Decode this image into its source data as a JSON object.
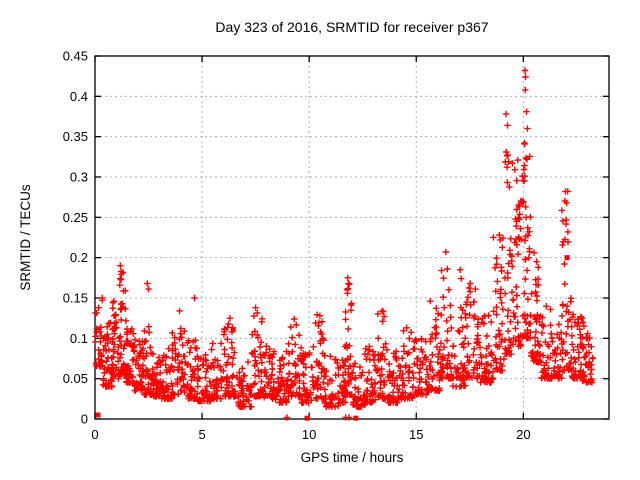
{
  "page": {
    "background_color": "#ffffff"
  },
  "chart_data": {
    "type": "scatter",
    "title": "Day 323 of 2016, SRMTID for receiver p367",
    "xlabel": "GPS time / hours",
    "ylabel": "SRMTID / TECUs",
    "xlim": [
      0,
      24
    ],
    "ylim": [
      0,
      0.45
    ],
    "xtick_values": [
      0,
      5,
      10,
      15,
      20
    ],
    "xtick_labels": [
      "0",
      "5",
      "10",
      "15",
      "20"
    ],
    "ytick_values": [
      0,
      0.05,
      0.1,
      0.15,
      0.2,
      0.25,
      0.3,
      0.35,
      0.4,
      0.45
    ],
    "ytick_labels": [
      "0",
      "0.05",
      "0.1",
      "0.15",
      "0.2",
      "0.25",
      "0.3",
      "0.35",
      "0.4",
      "0.45"
    ],
    "grid": true,
    "grid_style": "dotted",
    "grid_color": "#b0b0b0",
    "axis_color": "#000000",
    "marker": "plus",
    "marker_color": "#ff0000",
    "legend": "none",
    "render_seed": 20161118,
    "sampling_note": "Dense scatter (~1900 pts) summarized as density bands [x_start_hr, x_end_hr, y_min, y_max, count] estimated from pixels; individually distinguishable extreme points listed explicitly in outlier_points; filled-square marks in square_points.",
    "point_bands": [
      [
        0.0,
        0.35,
        0.065,
        0.155,
        28
      ],
      [
        0.35,
        0.8,
        0.04,
        0.12,
        40
      ],
      [
        0.8,
        1.1,
        0.05,
        0.155,
        38
      ],
      [
        1.1,
        1.45,
        0.055,
        0.185,
        45
      ],
      [
        1.45,
        1.8,
        0.045,
        0.13,
        40
      ],
      [
        1.8,
        2.3,
        0.035,
        0.1,
        46
      ],
      [
        2.3,
        2.6,
        0.03,
        0.115,
        32
      ],
      [
        2.6,
        3.1,
        0.028,
        0.085,
        46
      ],
      [
        3.1,
        3.6,
        0.025,
        0.09,
        42
      ],
      [
        3.6,
        4.2,
        0.03,
        0.12,
        48
      ],
      [
        4.2,
        4.8,
        0.025,
        0.1,
        46
      ],
      [
        4.8,
        5.4,
        0.022,
        0.08,
        46
      ],
      [
        5.4,
        5.9,
        0.025,
        0.095,
        40
      ],
      [
        5.9,
        6.6,
        0.028,
        0.125,
        52
      ],
      [
        6.6,
        7.3,
        0.015,
        0.075,
        46
      ],
      [
        7.3,
        7.8,
        0.028,
        0.135,
        40
      ],
      [
        7.8,
        8.4,
        0.025,
        0.095,
        46
      ],
      [
        8.4,
        9.0,
        0.02,
        0.085,
        42
      ],
      [
        9.0,
        9.6,
        0.028,
        0.12,
        42
      ],
      [
        9.6,
        10.2,
        0.02,
        0.09,
        42
      ],
      [
        10.2,
        10.7,
        0.025,
        0.13,
        40
      ],
      [
        10.7,
        11.4,
        0.015,
        0.08,
        46
      ],
      [
        11.4,
        11.7,
        0.02,
        0.09,
        26
      ],
      [
        11.7,
        12.0,
        0.03,
        0.175,
        30
      ],
      [
        12.0,
        12.6,
        0.015,
        0.075,
        42
      ],
      [
        12.6,
        13.2,
        0.02,
        0.1,
        42
      ],
      [
        13.2,
        13.7,
        0.025,
        0.135,
        40
      ],
      [
        13.7,
        14.3,
        0.02,
        0.09,
        46
      ],
      [
        14.3,
        14.9,
        0.025,
        0.11,
        42
      ],
      [
        14.9,
        15.5,
        0.03,
        0.1,
        42
      ],
      [
        15.5,
        16.1,
        0.035,
        0.145,
        46
      ],
      [
        16.1,
        16.7,
        0.05,
        0.185,
        46
      ],
      [
        16.7,
        17.3,
        0.04,
        0.14,
        42
      ],
      [
        17.3,
        18.0,
        0.05,
        0.165,
        48
      ],
      [
        18.0,
        18.6,
        0.045,
        0.13,
        46
      ],
      [
        18.6,
        19.1,
        0.06,
        0.23,
        42
      ],
      [
        19.1,
        19.5,
        0.08,
        0.33,
        36
      ],
      [
        19.5,
        19.95,
        0.09,
        0.3,
        40
      ],
      [
        19.95,
        20.35,
        0.1,
        0.345,
        46
      ],
      [
        20.35,
        20.8,
        0.07,
        0.175,
        40
      ],
      [
        20.8,
        21.3,
        0.05,
        0.14,
        34
      ],
      [
        21.3,
        21.8,
        0.05,
        0.12,
        34
      ],
      [
        21.8,
        22.25,
        0.06,
        0.29,
        40
      ],
      [
        22.25,
        22.75,
        0.05,
        0.13,
        46
      ],
      [
        22.75,
        23.25,
        0.045,
        0.12,
        44
      ]
    ],
    "outlier_points": [
      [
        0.17,
        0.138
      ],
      [
        1.18,
        0.19
      ],
      [
        1.22,
        0.183
      ],
      [
        2.44,
        0.168
      ],
      [
        2.5,
        0.161
      ],
      [
        3.95,
        0.134
      ],
      [
        4.65,
        0.15
      ],
      [
        6.3,
        0.125
      ],
      [
        7.5,
        0.138
      ],
      [
        9.3,
        0.124
      ],
      [
        10.5,
        0.128
      ],
      [
        11.78,
        0.16
      ],
      [
        11.8,
        0.175
      ],
      [
        11.84,
        0.168
      ],
      [
        13.45,
        0.133
      ],
      [
        13.5,
        0.127
      ],
      [
        14.55,
        0.113
      ],
      [
        15.65,
        0.146
      ],
      [
        16.38,
        0.207
      ],
      [
        16.45,
        0.186
      ],
      [
        17.05,
        0.185
      ],
      [
        17.1,
        0.174
      ],
      [
        17.52,
        0.168
      ],
      [
        17.76,
        0.161
      ],
      [
        18.88,
        0.228
      ],
      [
        18.92,
        0.222
      ],
      [
        19.19,
        0.378
      ],
      [
        19.26,
        0.364
      ],
      [
        19.2,
        0.331
      ],
      [
        19.31,
        0.319
      ],
      [
        19.45,
        0.196
      ],
      [
        19.6,
        0.309
      ],
      [
        19.7,
        0.216
      ],
      [
        19.74,
        0.321
      ],
      [
        19.78,
        0.225
      ],
      [
        20.05,
        0.342
      ],
      [
        20.07,
        0.301
      ],
      [
        20.08,
        0.432
      ],
      [
        20.09,
        0.408
      ],
      [
        20.1,
        0.424
      ],
      [
        20.15,
        0.381
      ],
      [
        20.17,
        0.322
      ],
      [
        20.19,
        0.36
      ],
      [
        20.5,
        0.206
      ],
      [
        20.62,
        0.195
      ],
      [
        20.7,
        0.188
      ],
      [
        21.97,
        0.282
      ],
      [
        22.02,
        0.268
      ],
      [
        22.0,
        0.247
      ],
      [
        22.08,
        0.232
      ],
      [
        8.96,
        0.002
      ],
      [
        11.7,
        0.002
      ],
      [
        11.86,
        0.002
      ]
    ],
    "square_points": [
      [
        0.14,
        0.005
      ],
      [
        6.45,
        0.111
      ],
      [
        8.2,
        0.078
      ],
      [
        9.9,
        0.001
      ],
      [
        12.18,
        0.001
      ],
      [
        22.04,
        0.2
      ]
    ]
  }
}
